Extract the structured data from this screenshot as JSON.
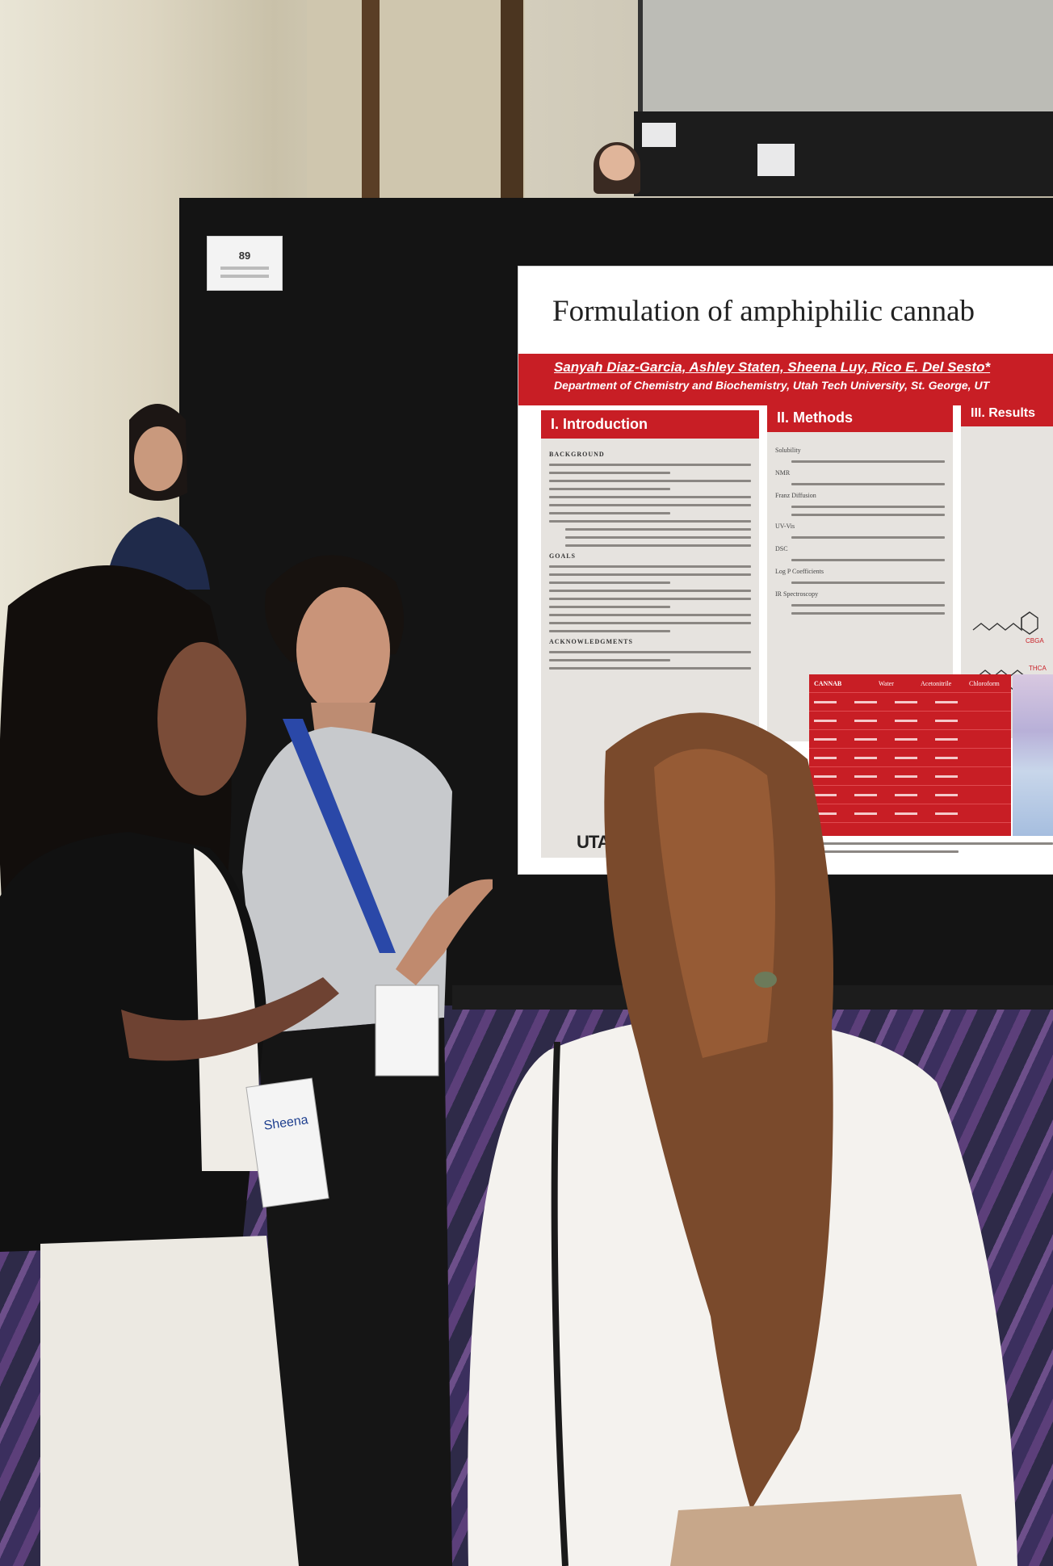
{
  "booth_tag": {
    "number": "89"
  },
  "poster": {
    "title": "Formulation of amphiphilic cannab",
    "authors": "Sanyah Diaz-Garcia, Ashley Staten, Sheena Luy, Rico E. Del Sesto*",
    "department": "Department of Chemistry and Biochemistry, Utah Tech University, St. George, UT",
    "sections": {
      "intro": "I.  Introduction",
      "methods": "II. Methods",
      "results": "III. Results"
    },
    "intro_labels": {
      "background": "BACKGROUND",
      "goals": "GOALS",
      "acknowledgments": "ACKNOWLEDGMENTS"
    },
    "methods_items": [
      "Solubility",
      "NMR",
      "Franz Diffusion",
      "UV-Vis",
      "DSC",
      "Log P Coefficients",
      "IR Spectroscopy"
    ],
    "molecules": [
      "CBGA",
      "THCA"
    ],
    "table_header": [
      "Water",
      "Acetonitrile",
      "Chloroform"
    ],
    "table_rows": [
      "CANNAB"
    ],
    "logo": "UTA"
  },
  "badge_name": "Sheena",
  "colors": {
    "poster_red": "#c81e25",
    "board": "#141414",
    "floor": "#3b2f5e"
  }
}
